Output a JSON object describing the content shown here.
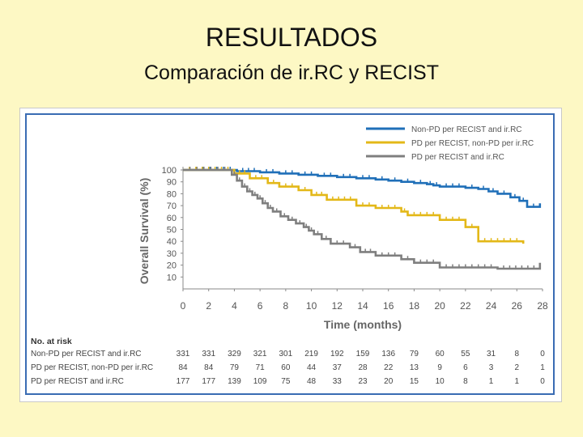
{
  "slide": {
    "title": "RESULTADOS",
    "subtitle": "Comparación de ir.RC y RECIST"
  },
  "chart_data": {
    "type": "line",
    "title": "",
    "xlabel": "Time (months)",
    "ylabel": "Overall Survival (%)",
    "xlim": [
      0,
      28
    ],
    "ylim": [
      0,
      100
    ],
    "xticks": [
      0,
      2,
      4,
      6,
      8,
      10,
      12,
      14,
      16,
      18,
      20,
      22,
      24,
      26,
      28
    ],
    "yticks": [
      10,
      20,
      30,
      40,
      50,
      60,
      70,
      80,
      90,
      100
    ],
    "grid": false,
    "legend_position": "top-right",
    "series": [
      {
        "name": "Non-PD per RECIST and ir.RC",
        "color": "#1f6fb8",
        "points": [
          [
            0,
            100
          ],
          [
            4.2,
            100
          ],
          [
            4.2,
            99
          ],
          [
            6,
            99
          ],
          [
            6,
            98
          ],
          [
            7.5,
            98
          ],
          [
            7.5,
            97
          ],
          [
            9,
            97
          ],
          [
            9,
            96
          ],
          [
            10.5,
            96
          ],
          [
            10.5,
            95
          ],
          [
            12,
            95
          ],
          [
            12,
            94
          ],
          [
            13.5,
            94
          ],
          [
            13.5,
            93
          ],
          [
            15,
            93
          ],
          [
            15,
            92
          ],
          [
            16,
            92
          ],
          [
            16,
            91
          ],
          [
            17,
            91
          ],
          [
            17,
            90
          ],
          [
            18,
            90
          ],
          [
            18,
            89
          ],
          [
            19,
            89
          ],
          [
            19,
            88
          ],
          [
            19.5,
            88
          ],
          [
            19.5,
            87
          ],
          [
            20,
            87
          ],
          [
            20,
            86
          ],
          [
            22,
            86
          ],
          [
            22,
            85
          ],
          [
            23,
            85
          ],
          [
            23,
            84
          ],
          [
            23.8,
            84
          ],
          [
            23.8,
            82
          ],
          [
            24.5,
            82
          ],
          [
            24.5,
            80
          ],
          [
            25.5,
            80
          ],
          [
            25.5,
            77
          ],
          [
            26.2,
            77
          ],
          [
            26.2,
            74
          ],
          [
            26.8,
            74
          ],
          [
            26.8,
            69
          ],
          [
            27.8,
            69
          ],
          [
            27.8,
            72
          ]
        ]
      },
      {
        "name": "PD per RECIST, non-PD per ir.RC",
        "color": "#e3b818",
        "points": [
          [
            0,
            100
          ],
          [
            4,
            100
          ],
          [
            4,
            97
          ],
          [
            5.2,
            97
          ],
          [
            5.2,
            93
          ],
          [
            6.6,
            93
          ],
          [
            6.6,
            89
          ],
          [
            7.5,
            89
          ],
          [
            7.5,
            86
          ],
          [
            9,
            86
          ],
          [
            9,
            83
          ],
          [
            10,
            83
          ],
          [
            10,
            79
          ],
          [
            11.2,
            79
          ],
          [
            11.2,
            75
          ],
          [
            13.5,
            75
          ],
          [
            13.5,
            70
          ],
          [
            15,
            70
          ],
          [
            15,
            68
          ],
          [
            17,
            68
          ],
          [
            17,
            65
          ],
          [
            17.5,
            65
          ],
          [
            17.5,
            62
          ],
          [
            20,
            62
          ],
          [
            20,
            58
          ],
          [
            22,
            58
          ],
          [
            22,
            52
          ],
          [
            23,
            52
          ],
          [
            23,
            40
          ],
          [
            26.5,
            40
          ],
          [
            26.5,
            38
          ]
        ]
      },
      {
        "name": "PD per RECIST and ir.RC",
        "color": "#7f7f7f",
        "points": [
          [
            0,
            100
          ],
          [
            3.8,
            100
          ],
          [
            3.8,
            96
          ],
          [
            4.2,
            96
          ],
          [
            4.2,
            91
          ],
          [
            4.6,
            91
          ],
          [
            4.6,
            86
          ],
          [
            5,
            86
          ],
          [
            5,
            82
          ],
          [
            5.4,
            82
          ],
          [
            5.4,
            79
          ],
          [
            5.8,
            79
          ],
          [
            5.8,
            76
          ],
          [
            6.2,
            76
          ],
          [
            6.2,
            72
          ],
          [
            6.6,
            72
          ],
          [
            6.6,
            68
          ],
          [
            7,
            68
          ],
          [
            7,
            65
          ],
          [
            7.6,
            65
          ],
          [
            7.6,
            61
          ],
          [
            8.2,
            61
          ],
          [
            8.2,
            58
          ],
          [
            8.8,
            58
          ],
          [
            8.8,
            55
          ],
          [
            9.4,
            55
          ],
          [
            9.4,
            52
          ],
          [
            9.8,
            52
          ],
          [
            9.8,
            49
          ],
          [
            10.2,
            49
          ],
          [
            10.2,
            46
          ],
          [
            10.8,
            46
          ],
          [
            10.8,
            42
          ],
          [
            11.5,
            42
          ],
          [
            11.5,
            38
          ],
          [
            13,
            38
          ],
          [
            13,
            35
          ],
          [
            13.8,
            35
          ],
          [
            13.8,
            31
          ],
          [
            15,
            31
          ],
          [
            15,
            28
          ],
          [
            17,
            28
          ],
          [
            17,
            25
          ],
          [
            18,
            25
          ],
          [
            18,
            22
          ],
          [
            20,
            22
          ],
          [
            20,
            18
          ],
          [
            24.5,
            18
          ],
          [
            24.5,
            17
          ],
          [
            27.8,
            17
          ],
          [
            27.8,
            22
          ]
        ]
      }
    ],
    "risk_table": {
      "title": "No. at risk",
      "times": [
        0,
        2,
        4,
        6,
        8,
        10,
        12,
        14,
        16,
        18,
        20,
        22,
        24,
        26,
        28
      ],
      "rows": [
        {
          "label": "Non-PD per RECIST and ir.RC",
          "values": [
            "331",
            "331",
            "329",
            "321",
            "301",
            "219",
            "192",
            "159",
            "136",
            "79",
            "60",
            "55",
            "31",
            "8",
            "0"
          ]
        },
        {
          "label": "PD per RECIST, non-PD per ir.RC",
          "values": [
            "84",
            "84",
            "79",
            "71",
            "60",
            "44",
            "37",
            "28",
            "22",
            "13",
            "9",
            "6",
            "3",
            "2",
            "1"
          ]
        },
        {
          "label": "PD per RECIST and ir.RC",
          "values": [
            "177",
            "177",
            "139",
            "109",
            "75",
            "48",
            "33",
            "23",
            "20",
            "15",
            "10",
            "8",
            "1",
            "1",
            "0"
          ]
        }
      ]
    }
  }
}
